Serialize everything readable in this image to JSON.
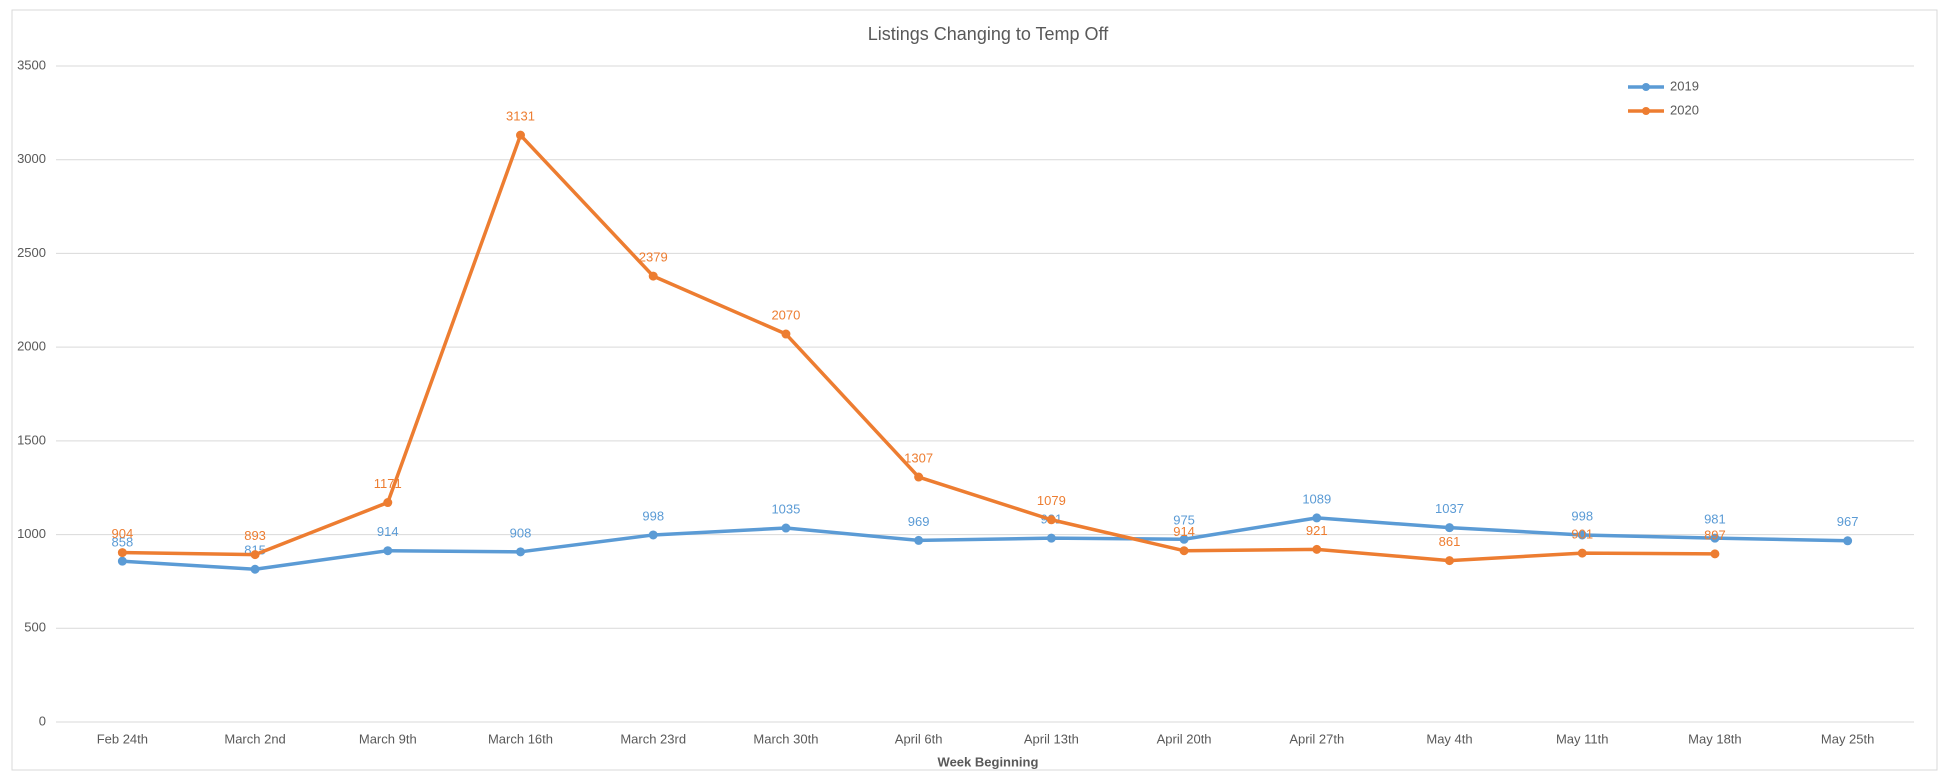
{
  "chart_data": {
    "type": "line",
    "title": "Listings Changing to Temp Off",
    "x_label": "Week Beginning",
    "categories": [
      "Feb 24th",
      "March 2nd",
      "March 9th",
      "March 16th",
      "March 23rd",
      "March 30th",
      "April 6th",
      "April 13th",
      "April 20th",
      "April 27th",
      "May 4th",
      "May 11th",
      "May 18th",
      "May 25th"
    ],
    "series": [
      {
        "name": "2019",
        "color": "#5b9bd5",
        "values": [
          858,
          815,
          914,
          908,
          998,
          1035,
          969,
          981,
          975,
          1089,
          1037,
          998,
          981,
          967
        ]
      },
      {
        "name": "2020",
        "color": "#ed7d31",
        "values": [
          904,
          893,
          1171,
          3131,
          2379,
          2070,
          1307,
          1079,
          914,
          921,
          861,
          901,
          897,
          null
        ]
      }
    ],
    "ylim": [
      0,
      3500
    ],
    "yticks": [
      0,
      500,
      1000,
      1500,
      2000,
      2500,
      3000,
      3500
    ],
    "grid": true,
    "legend": "top-right"
  }
}
